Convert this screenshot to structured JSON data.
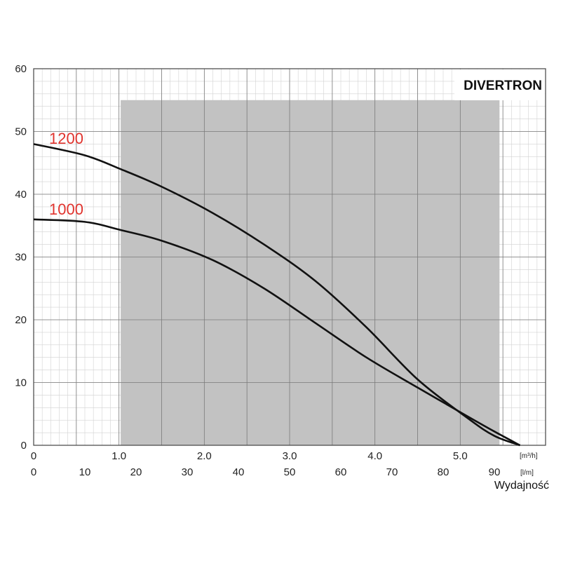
{
  "chart_data": {
    "type": "line",
    "brand": "DIVERTRON",
    "x_m3h": {
      "unit": "[m³/h]",
      "tick_labels": [
        "0",
        "1.0",
        "2.0",
        "3.0",
        "4.0",
        "5.0"
      ],
      "ticks": [
        0,
        1,
        2,
        3,
        4,
        5
      ]
    },
    "x_lmin": {
      "unit": "[l/m]",
      "tick_labels": [
        "0",
        "10",
        "20",
        "30",
        "40",
        "50",
        "60",
        "70",
        "80",
        "90"
      ],
      "ticks": [
        0,
        10,
        20,
        30,
        40,
        50,
        60,
        70,
        80,
        90
      ],
      "range": [
        0,
        100
      ]
    },
    "xlabel": "Wydajność",
    "ylim": [
      0,
      60
    ],
    "y_ticks": [
      0,
      10,
      20,
      30,
      40,
      50,
      60
    ],
    "shaded_region_lmin": [
      17,
      91
    ],
    "shaded_region_y": [
      0,
      55
    ],
    "grid": true,
    "series": [
      {
        "name": "1200",
        "color": "#e0332d",
        "x": [
          0,
          10,
          17,
          25,
          35,
          45,
          55,
          65,
          75,
          85,
          90,
          95
        ],
        "y": [
          48,
          46.2,
          44,
          41.2,
          37,
          32,
          26.2,
          18.8,
          10.5,
          4.2,
          1.5,
          0
        ]
      },
      {
        "name": "1000",
        "color": "#e0332d",
        "x": [
          0,
          10,
          17,
          25,
          35,
          45,
          55,
          65,
          75,
          85,
          90,
          95
        ],
        "y": [
          36,
          35.6,
          34.3,
          32.6,
          29.5,
          25,
          19.5,
          14,
          9.2,
          4.5,
          2.2,
          0
        ]
      }
    ]
  }
}
